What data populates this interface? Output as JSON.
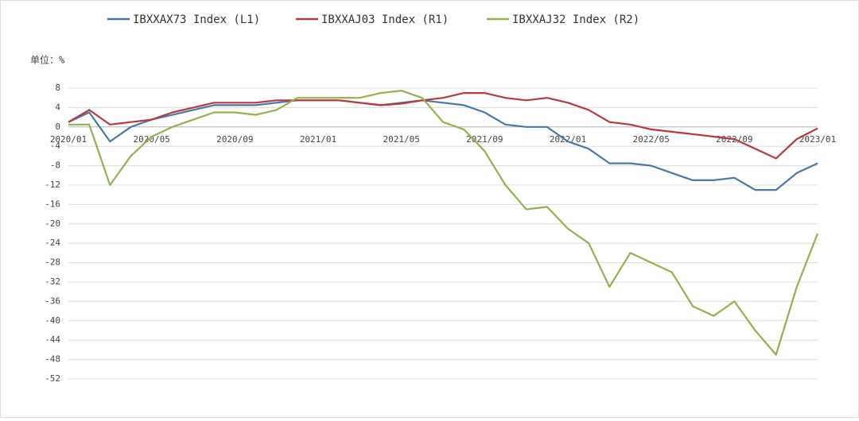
{
  "chart_data": {
    "type": "line",
    "unit_label": "单位：%",
    "x": [
      "2020/01",
      "2020/02",
      "2020/03",
      "2020/04",
      "2020/05",
      "2020/06",
      "2020/07",
      "2020/08",
      "2020/09",
      "2020/10",
      "2020/11",
      "2020/12",
      "2021/01",
      "2021/02",
      "2021/03",
      "2021/04",
      "2021/05",
      "2021/06",
      "2021/07",
      "2021/08",
      "2021/09",
      "2021/10",
      "2021/11",
      "2021/12",
      "2022/01",
      "2022/02",
      "2022/03",
      "2022/04",
      "2022/05",
      "2022/06",
      "2022/07",
      "2022/08",
      "2022/09",
      "2022/10",
      "2022/11",
      "2022/12",
      "2023/01"
    ],
    "xticks": [
      "2020/01",
      "2020/05",
      "2020/09",
      "2021/01",
      "2021/05",
      "2021/09",
      "2022/01",
      "2022/05",
      "2022/09",
      "2023/01"
    ],
    "series": [
      {
        "name": "IBXXAX73 Index  (L1)",
        "color": "#4a77aa",
        "values": [
          1,
          3,
          -3,
          0,
          1.5,
          2.5,
          3.5,
          4.5,
          4.5,
          4.5,
          5,
          5.5,
          5.5,
          5.5,
          5,
          4.5,
          5,
          5.5,
          5,
          4.5,
          3,
          0.5,
          0,
          0,
          -3,
          -4.5,
          -7.5,
          -7.5,
          -8,
          -9.5,
          -11,
          -11,
          -10.5,
          -13,
          -13,
          -9.5,
          -7.5
        ]
      },
      {
        "name": "IBXXAJ03 Index  (R1)",
        "color": "#b83a3a",
        "values": [
          1,
          3.5,
          0.5,
          1,
          1.5,
          3,
          4,
          5,
          5,
          5,
          5.5,
          5.5,
          5.5,
          5.5,
          5,
          4.5,
          4.8,
          5.5,
          6,
          7,
          7,
          6,
          5.5,
          6,
          5,
          3.5,
          1,
          0.5,
          -0.5,
          -1,
          -1.5,
          -2,
          -2.5,
          -4.5,
          -6.5,
          -2.5,
          -0.3
        ]
      },
      {
        "name": "IBXXAJ32 Index  (R2)",
        "color": "#93b24c",
        "values": [
          0.5,
          0.5,
          -12,
          -6,
          -2,
          0,
          1.5,
          3,
          3,
          2.5,
          3.5,
          6,
          6,
          6,
          6,
          7,
          7.5,
          6,
          1,
          -0.5,
          -5,
          -12,
          -17,
          -16.5,
          -21,
          -24,
          -33,
          -26,
          -28,
          -30,
          -37,
          -39,
          -36,
          -42,
          -47,
          -33,
          -22
        ]
      }
    ],
    "ylim": [
      -52,
      8
    ],
    "yticks": [
      8,
      4,
      0,
      -4,
      -8,
      -12,
      -16,
      -20,
      -24,
      -28,
      -32,
      -36,
      -40,
      -44,
      -48,
      -52
    ],
    "grid": true
  }
}
